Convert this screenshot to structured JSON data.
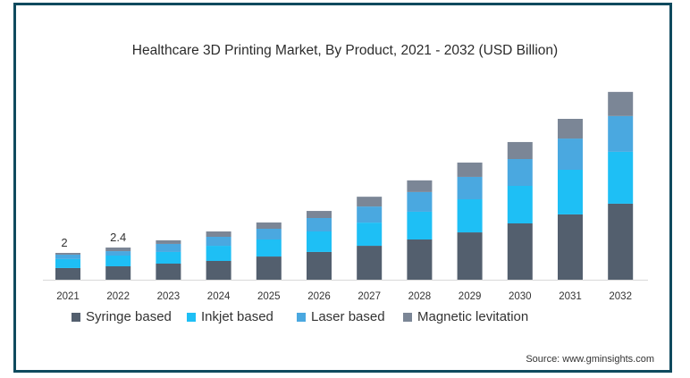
{
  "chart_data": {
    "type": "bar",
    "stacked": true,
    "title": "Healthcare 3D Printing Market, By Product, 2021 - 2032 (USD Billion)",
    "xlabel": "",
    "ylabel": "",
    "ylim": [
      0,
      14.5
    ],
    "grid": false,
    "legend_position": "bottom",
    "categories": [
      "2021",
      "2022",
      "2023",
      "2024",
      "2025",
      "2026",
      "2027",
      "2028",
      "2029",
      "2030",
      "2031",
      "2032"
    ],
    "series": [
      {
        "name": "Syringe based",
        "color": "#535f6e",
        "values": [
          0.87,
          1.0,
          1.2,
          1.4,
          1.73,
          2.07,
          2.53,
          3.0,
          3.53,
          4.2,
          4.87,
          5.67
        ]
      },
      {
        "name": "Inkjet based",
        "color": "#1ebff5",
        "values": [
          0.67,
          0.8,
          0.87,
          1.13,
          1.27,
          1.53,
          1.73,
          2.07,
          2.47,
          2.8,
          3.33,
          3.87
        ]
      },
      {
        "name": "Laser based",
        "color": "#4aa8e0",
        "values": [
          0.33,
          0.33,
          0.6,
          0.67,
          0.8,
          1.0,
          1.2,
          1.47,
          1.67,
          2.0,
          2.33,
          2.67
        ]
      },
      {
        "name": "Magnetic levitation",
        "color": "#7b8696",
        "values": [
          0.13,
          0.27,
          0.27,
          0.4,
          0.47,
          0.53,
          0.73,
          0.87,
          1.07,
          1.27,
          1.47,
          1.8
        ]
      }
    ],
    "annotations": [
      {
        "category": "2021",
        "text": "2"
      },
      {
        "category": "2022",
        "text": "2.4"
      }
    ]
  },
  "source": "Source: www.gminsights.com",
  "colors": {
    "frame": "#0f4a5e",
    "axis": "#d9d9d9"
  }
}
